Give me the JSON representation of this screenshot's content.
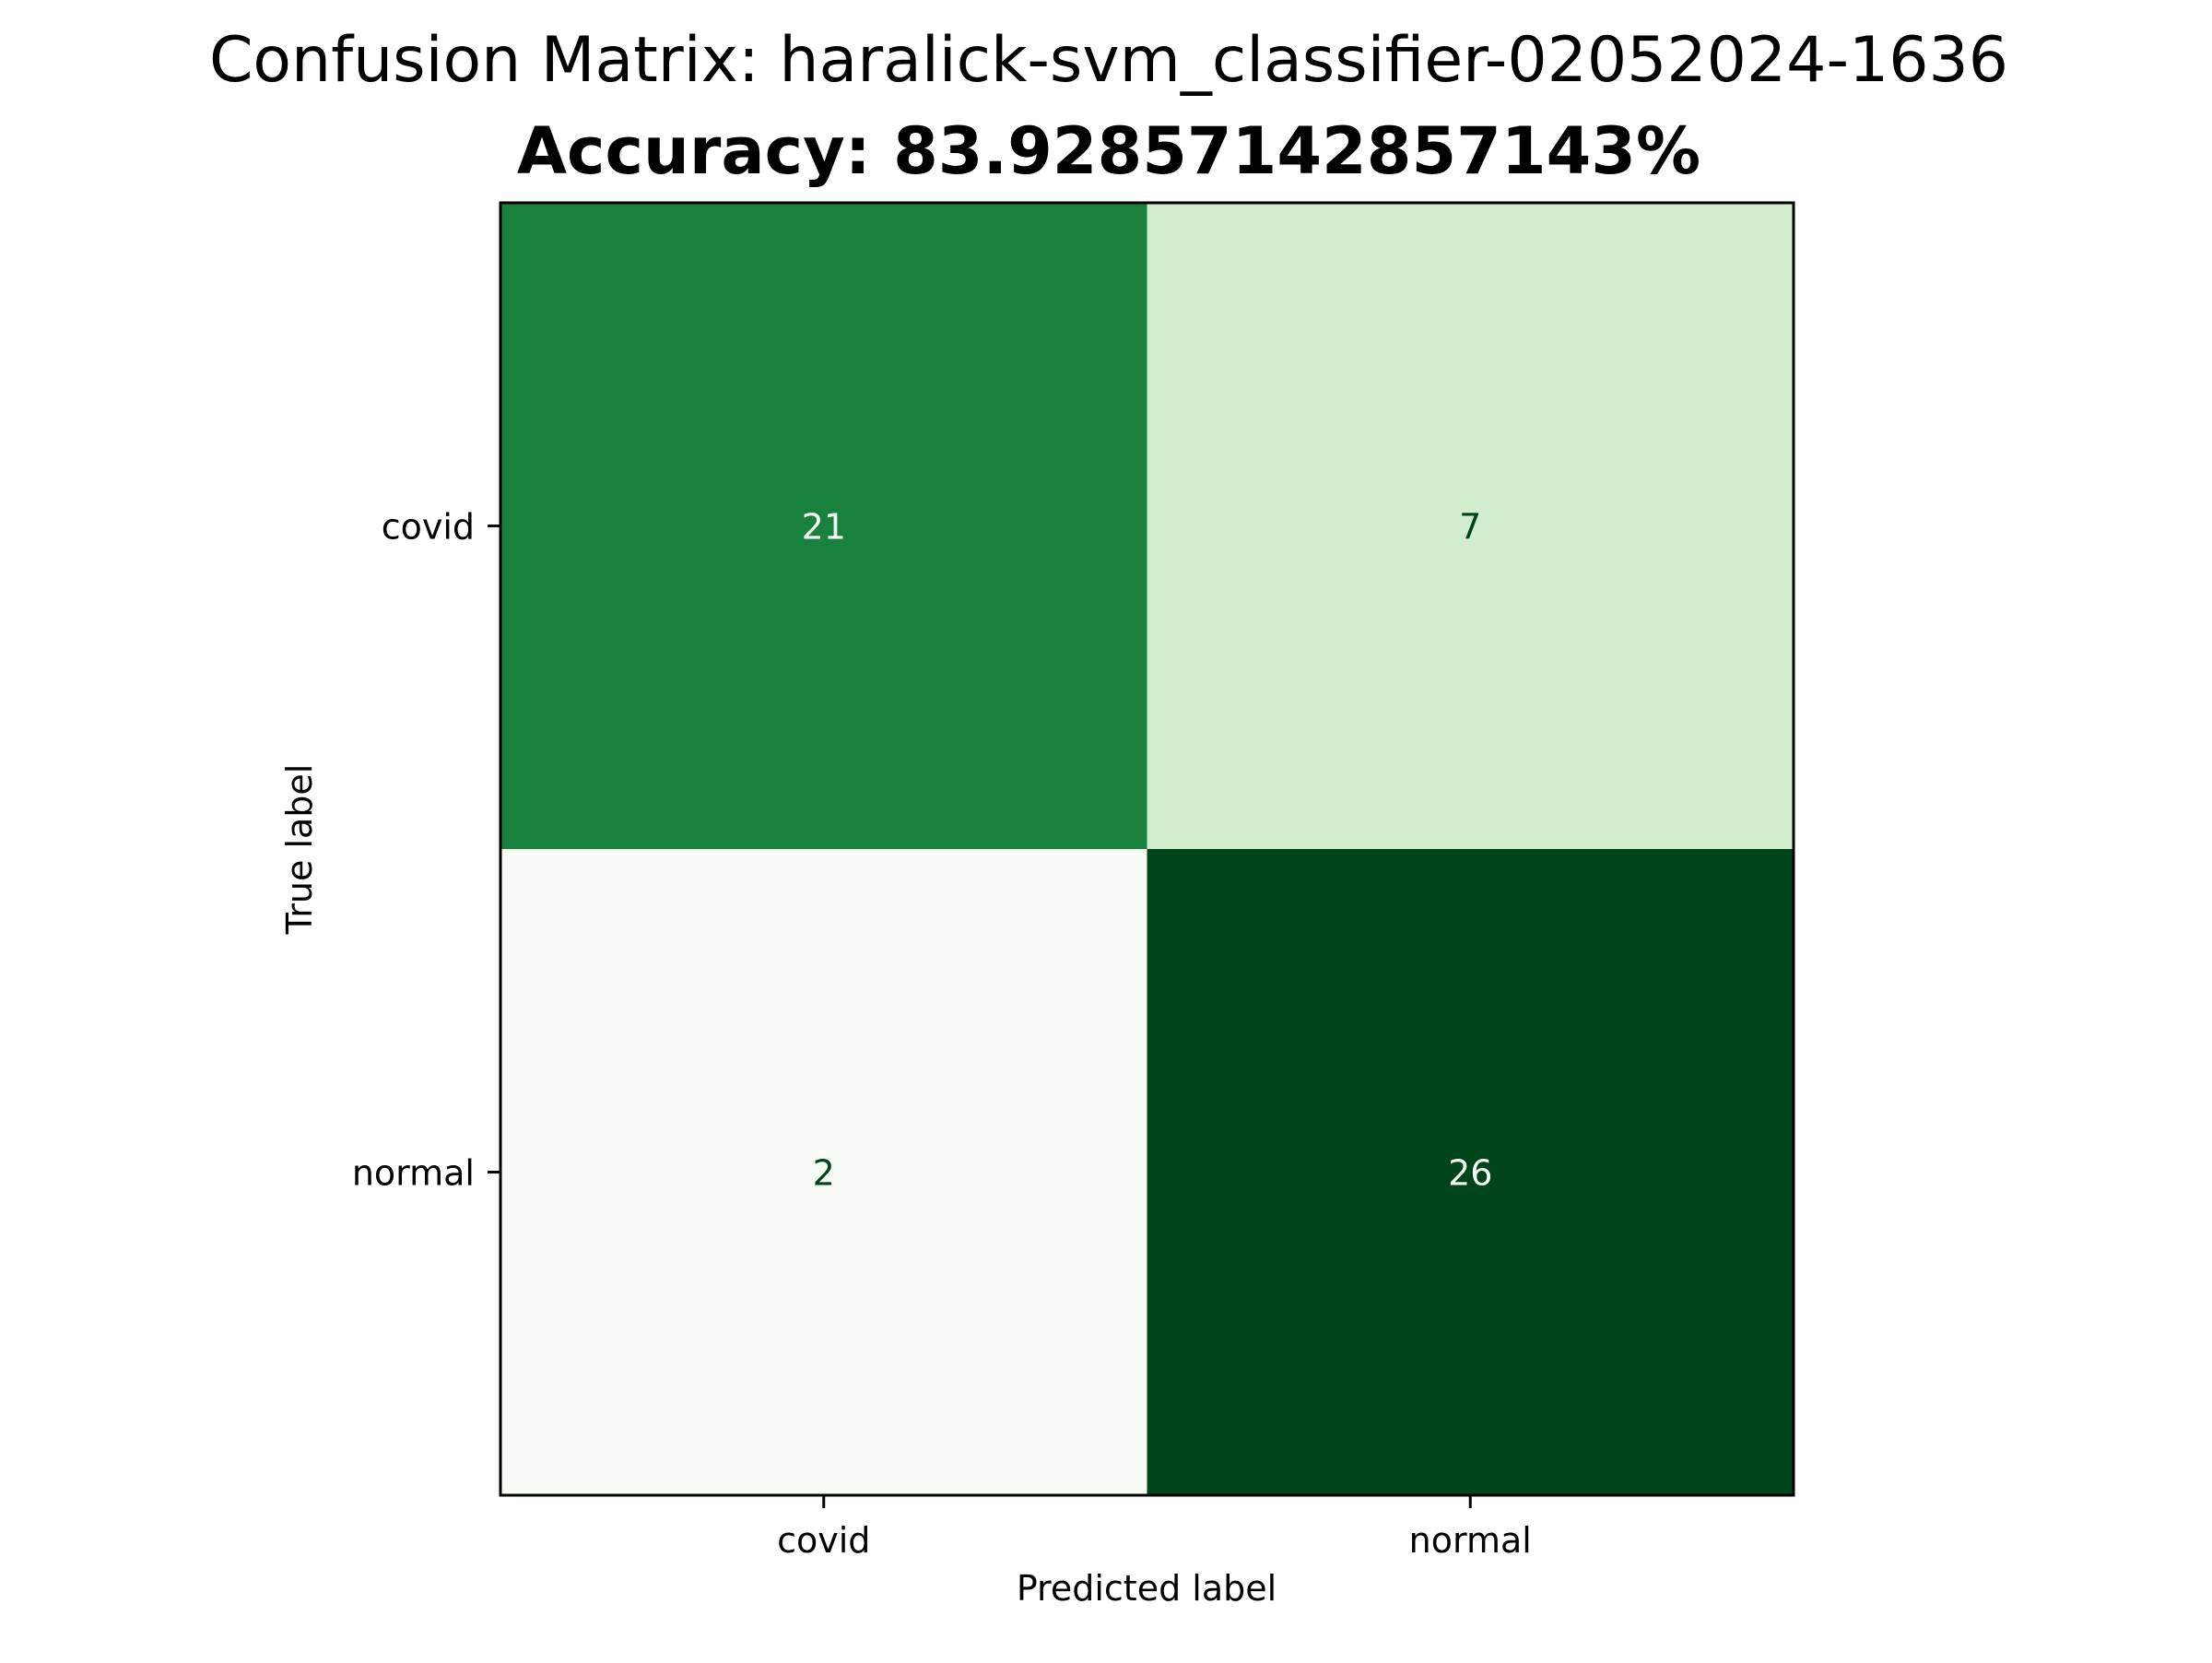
{
  "chart_data": {
    "type": "heatmap",
    "title": "Confusion Matrix: haralick-svm_classifier-02052024-1636",
    "subtitle": "Accuracy: 83.92857142857143%",
    "xlabel": "Predicted label",
    "ylabel": "True label",
    "x_categories": [
      "covid",
      "normal"
    ],
    "y_categories": [
      "covid",
      "normal"
    ],
    "matrix": [
      [
        21,
        7
      ],
      [
        2,
        26
      ]
    ],
    "colormap": "Greens",
    "color_range": [
      2,
      26
    ],
    "grid": false,
    "colorbar": false
  }
}
